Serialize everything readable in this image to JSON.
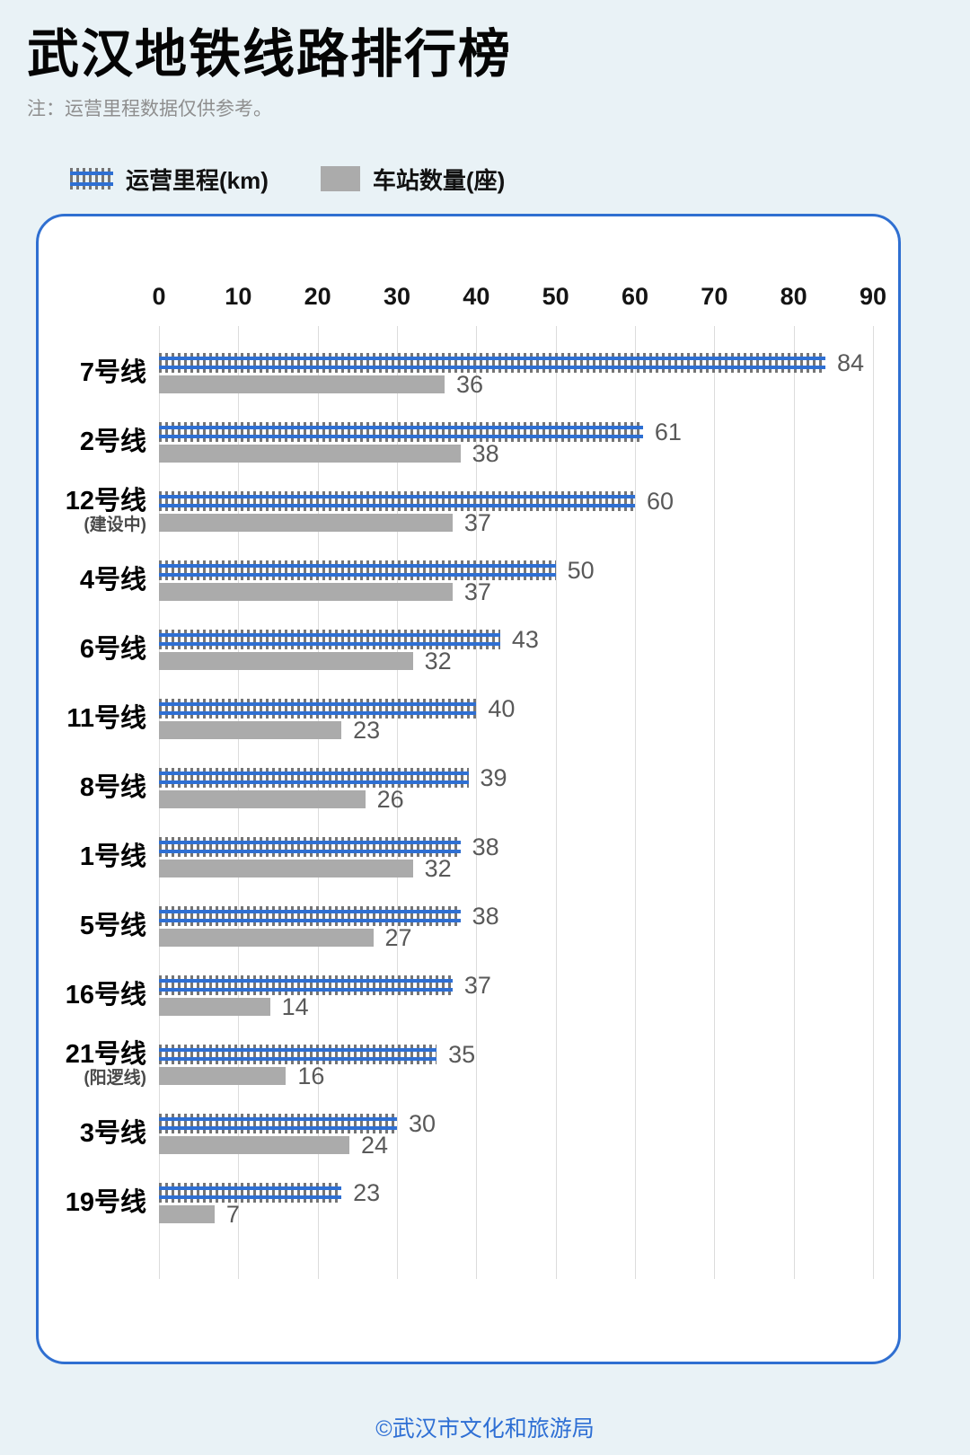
{
  "page": {
    "title": "武汉地铁线路排行榜",
    "note": "注：运营里程数据仅供参考。",
    "footer": "©武汉市文化和旅游局"
  },
  "legend": {
    "mileage_label": "运营里程(km)",
    "stations_label": "车站数量(座)"
  },
  "colors": {
    "background": "#e9f2f6",
    "card_border": "#2f6fd1",
    "rail_blue": "#2e6fd3",
    "tie_gray": "#757575",
    "station_gray": "#ababab",
    "gridline_gray": "#dcdcdc",
    "value_text": "#595959",
    "footer_blue": "#2e6fd4"
  },
  "chart_data": {
    "type": "bar",
    "orientation": "horizontal",
    "title": "武汉地铁线路排行榜",
    "xlabel": "",
    "ylabel": "",
    "axis": {
      "min": 0,
      "max": 90,
      "ticks": [
        0,
        10,
        20,
        30,
        40,
        50,
        60,
        70,
        80,
        90
      ]
    },
    "grid": true,
    "legend_position": "top",
    "series": [
      {
        "name": "运营里程(km)",
        "style": "railway-track"
      },
      {
        "name": "车站数量(座)",
        "style": "solid-gray"
      }
    ],
    "rows": [
      {
        "label": "7号线",
        "sublabel": "",
        "mileage": 84,
        "stations": 36
      },
      {
        "label": "2号线",
        "sublabel": "",
        "mileage": 61,
        "stations": 38
      },
      {
        "label": "12号线",
        "sublabel": "(建设中)",
        "mileage": 60,
        "stations": 37
      },
      {
        "label": "4号线",
        "sublabel": "",
        "mileage": 50,
        "stations": 37
      },
      {
        "label": "6号线",
        "sublabel": "",
        "mileage": 43,
        "stations": 32
      },
      {
        "label": "11号线",
        "sublabel": "",
        "mileage": 40,
        "stations": 23
      },
      {
        "label": "8号线",
        "sublabel": "",
        "mileage": 39,
        "stations": 26
      },
      {
        "label": "1号线",
        "sublabel": "",
        "mileage": 38,
        "stations": 32
      },
      {
        "label": "5号线",
        "sublabel": "",
        "mileage": 38,
        "stations": 27
      },
      {
        "label": "16号线",
        "sublabel": "",
        "mileage": 37,
        "stations": 14
      },
      {
        "label": "21号线",
        "sublabel": "(阳逻线)",
        "mileage": 35,
        "stations": 16
      },
      {
        "label": "3号线",
        "sublabel": "",
        "mileage": 30,
        "stations": 24
      },
      {
        "label": "19号线",
        "sublabel": "",
        "mileage": 23,
        "stations": 7
      }
    ]
  }
}
